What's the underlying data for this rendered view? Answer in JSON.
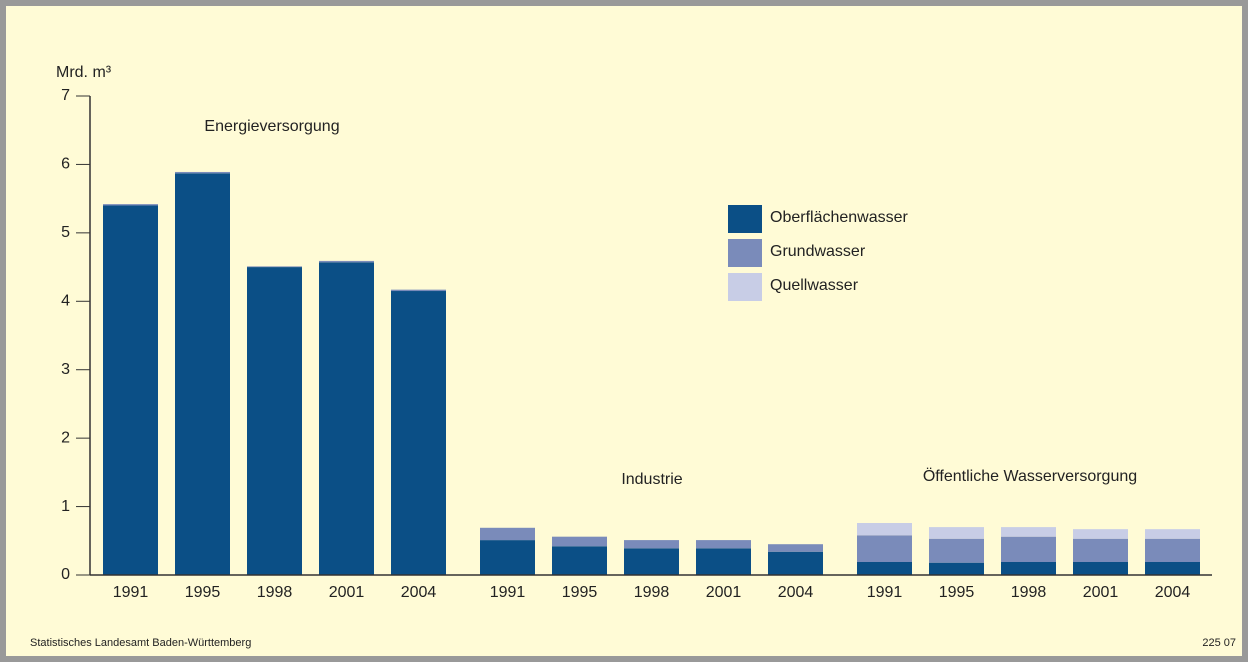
{
  "chart_data": {
    "type": "bar",
    "stacked": true,
    "y_label": "Mrd. m³",
    "groups": [
      {
        "name": "Energieversorgung",
        "categories": [
          "1991",
          "1995",
          "1998",
          "2001",
          "2004"
        ]
      },
      {
        "name": "Industrie",
        "categories": [
          "1991",
          "1995",
          "1998",
          "2001",
          "2004"
        ]
      },
      {
        "name": "Öffentliche Wasserversorgung",
        "categories": [
          "1991",
          "1995",
          "1998",
          "2001",
          "2004"
        ]
      }
    ],
    "series": [
      {
        "name": "Oberflächenwasser",
        "color": "#0b4f86",
        "values": [
          5.4,
          5.87,
          4.5,
          4.57,
          4.15,
          0.51,
          0.42,
          0.39,
          0.39,
          0.34,
          0.19,
          0.18,
          0.19,
          0.19,
          0.19
        ]
      },
      {
        "name": "Grundwasser",
        "color": "#7a8bba",
        "values": [
          0.02,
          0.02,
          0.01,
          0.02,
          0.02,
          0.18,
          0.14,
          0.12,
          0.12,
          0.11,
          0.39,
          0.35,
          0.37,
          0.34,
          0.34
        ]
      },
      {
        "name": "Quellwasser",
        "color": "#c8cde6",
        "values": [
          0,
          0,
          0,
          0,
          0,
          0,
          0,
          0,
          0,
          0,
          0.18,
          0.17,
          0.14,
          0.14,
          0.14
        ]
      }
    ],
    "ylim": [
      0,
      7
    ],
    "yticks": [
      0,
      1,
      2,
      3,
      4,
      5,
      6,
      7
    ],
    "source": "Statistisches Landesamt Baden-Württemberg",
    "code": "225 07"
  }
}
